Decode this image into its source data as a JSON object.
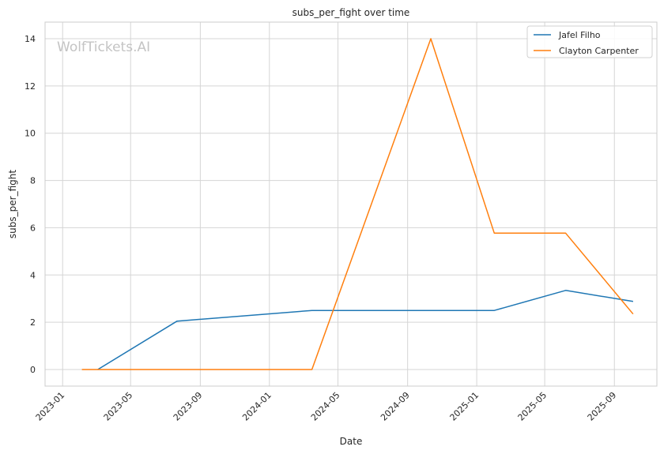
{
  "chart_data": {
    "type": "line",
    "title": "subs_per_fight over time",
    "xlabel": "Date",
    "ylabel": "subs_per_fight",
    "watermark": "WolfTickets.AI",
    "x_ticks": [
      "2023-01",
      "2023-05",
      "2023-09",
      "2024-01",
      "2024-05",
      "2024-09",
      "2025-01",
      "2025-05",
      "2025-09"
    ],
    "y_ticks": [
      0,
      2,
      4,
      6,
      8,
      10,
      12,
      14
    ],
    "xlim": [
      "2022-12-01",
      "2025-11-15"
    ],
    "ylim": [
      -0.7,
      14.7
    ],
    "grid": true,
    "legend_position": "top-right",
    "series": [
      {
        "name": "Jafel Filho",
        "color": "#1f77b4",
        "points": [
          {
            "x": "2023-03-04",
            "y": 0
          },
          {
            "x": "2023-07-22",
            "y": 2.05
          },
          {
            "x": "2024-03-16",
            "y": 2.5
          },
          {
            "x": "2025-02-01",
            "y": 2.5
          },
          {
            "x": "2025-06-07",
            "y": 3.35
          },
          {
            "x": "2025-10-04",
            "y": 2.88
          }
        ]
      },
      {
        "name": "Clayton Carpenter",
        "color": "#ff7f0e",
        "points": [
          {
            "x": "2023-02-04",
            "y": 0
          },
          {
            "x": "2024-03-16",
            "y": 0
          },
          {
            "x": "2024-10-12",
            "y": 14
          },
          {
            "x": "2025-02-01",
            "y": 5.77
          },
          {
            "x": "2025-06-07",
            "y": 5.77
          },
          {
            "x": "2025-10-04",
            "y": 2.35
          }
        ]
      }
    ]
  }
}
